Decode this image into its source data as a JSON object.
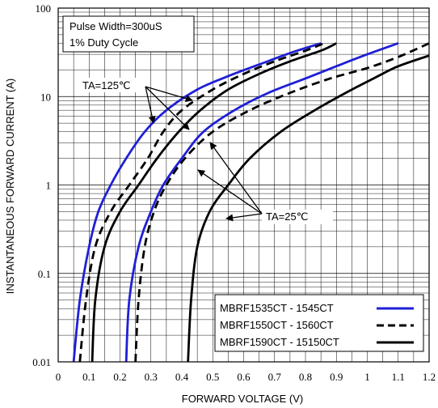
{
  "chart_data": {
    "type": "line",
    "xlabel": "FORWARD VOLTAGE (V)",
    "ylabel": "INSTANTANEOUS FORWARD CURRENT (A)",
    "xlim": [
      0,
      1.2
    ],
    "ylim": [
      0.01,
      100
    ],
    "yscale": "log",
    "grid": true,
    "x_ticks": [
      "0",
      "0.1",
      "0.2",
      "0.3",
      "0.4",
      "0.5",
      "0.6",
      "0.7",
      "0.8",
      "0.9",
      "1",
      "1.1",
      "1.2"
    ],
    "y_ticks": [
      "0.01",
      "0.1",
      "1",
      "10",
      "100"
    ],
    "legend_position": "bottom-right",
    "annotations": {
      "conditions": [
        "Pulse Width=300uS",
        "1% Duty Cycle"
      ],
      "hot": "TA=125℃",
      "cold": "TA=25℃"
    },
    "series": [
      {
        "name": "MBRF1535CT - 1545CT",
        "color": "#1f1fd6",
        "style": "solid",
        "curves": [
          {
            "temp": "125",
            "points": [
              [
                0.05,
                0.01
              ],
              [
                0.07,
                0.05
              ],
              [
                0.1,
                0.2
              ],
              [
                0.13,
                0.5
              ],
              [
                0.17,
                1.0
              ],
              [
                0.22,
                2.0
              ],
              [
                0.28,
                4.0
              ],
              [
                0.35,
                7.0
              ],
              [
                0.45,
                12
              ],
              [
                0.55,
                17
              ],
              [
                0.65,
                23
              ],
              [
                0.75,
                31
              ],
              [
                0.85,
                40
              ]
            ]
          },
          {
            "temp": "25",
            "points": [
              [
                0.22,
                0.01
              ],
              [
                0.23,
                0.05
              ],
              [
                0.26,
                0.2
              ],
              [
                0.3,
                0.5
              ],
              [
                0.34,
                1.0
              ],
              [
                0.4,
                2.0
              ],
              [
                0.47,
                4.0
              ],
              [
                0.57,
                7.0
              ],
              [
                0.68,
                11
              ],
              [
                0.8,
                16
              ],
              [
                0.9,
                22
              ],
              [
                1.0,
                30
              ],
              [
                1.1,
                40
              ]
            ]
          }
        ]
      },
      {
        "name": "MBRF1550CT - 1560CT",
        "color": "#000000",
        "style": "dashed",
        "curves": [
          {
            "temp": "125",
            "points": [
              [
                0.07,
                0.01
              ],
              [
                0.09,
                0.05
              ],
              [
                0.12,
                0.2
              ],
              [
                0.17,
                0.5
              ],
              [
                0.23,
                1.0
              ],
              [
                0.29,
                2.0
              ],
              [
                0.34,
                4.0
              ],
              [
                0.4,
                7.0
              ],
              [
                0.5,
                12
              ],
              [
                0.6,
                18
              ],
              [
                0.7,
                25
              ],
              [
                0.8,
                33
              ],
              [
                0.86,
                40
              ]
            ]
          },
          {
            "temp": "25",
            "points": [
              [
                0.25,
                0.01
              ],
              [
                0.26,
                0.05
              ],
              [
                0.28,
                0.2
              ],
              [
                0.31,
                0.5
              ],
              [
                0.35,
                1.0
              ],
              [
                0.41,
                2.0
              ],
              [
                0.5,
                4.0
              ],
              [
                0.62,
                7.0
              ],
              [
                0.75,
                11
              ],
              [
                0.88,
                16
              ],
              [
                1.0,
                21
              ],
              [
                1.1,
                28
              ],
              [
                1.2,
                40
              ]
            ]
          }
        ]
      },
      {
        "name": "MBRF1590CT - 15150CT",
        "color": "#000000",
        "style": "solid",
        "curves": [
          {
            "temp": "125",
            "points": [
              [
                0.11,
                0.01
              ],
              [
                0.12,
                0.05
              ],
              [
                0.15,
                0.2
              ],
              [
                0.2,
                0.5
              ],
              [
                0.26,
                1.0
              ],
              [
                0.32,
                2.0
              ],
              [
                0.39,
                4.0
              ],
              [
                0.46,
                7.0
              ],
              [
                0.55,
                12
              ],
              [
                0.65,
                18
              ],
              [
                0.75,
                25
              ],
              [
                0.85,
                33
              ],
              [
                0.9,
                40
              ]
            ]
          },
          {
            "temp": "25",
            "points": [
              [
                0.42,
                0.01
              ],
              [
                0.43,
                0.05
              ],
              [
                0.45,
                0.2
              ],
              [
                0.49,
                0.5
              ],
              [
                0.55,
                1.0
              ],
              [
                0.62,
                2.0
              ],
              [
                0.72,
                4.0
              ],
              [
                0.83,
                7.0
              ],
              [
                0.93,
                11
              ],
              [
                1.02,
                16
              ],
              [
                1.1,
                22
              ],
              [
                1.2,
                29
              ]
            ]
          }
        ]
      }
    ]
  }
}
